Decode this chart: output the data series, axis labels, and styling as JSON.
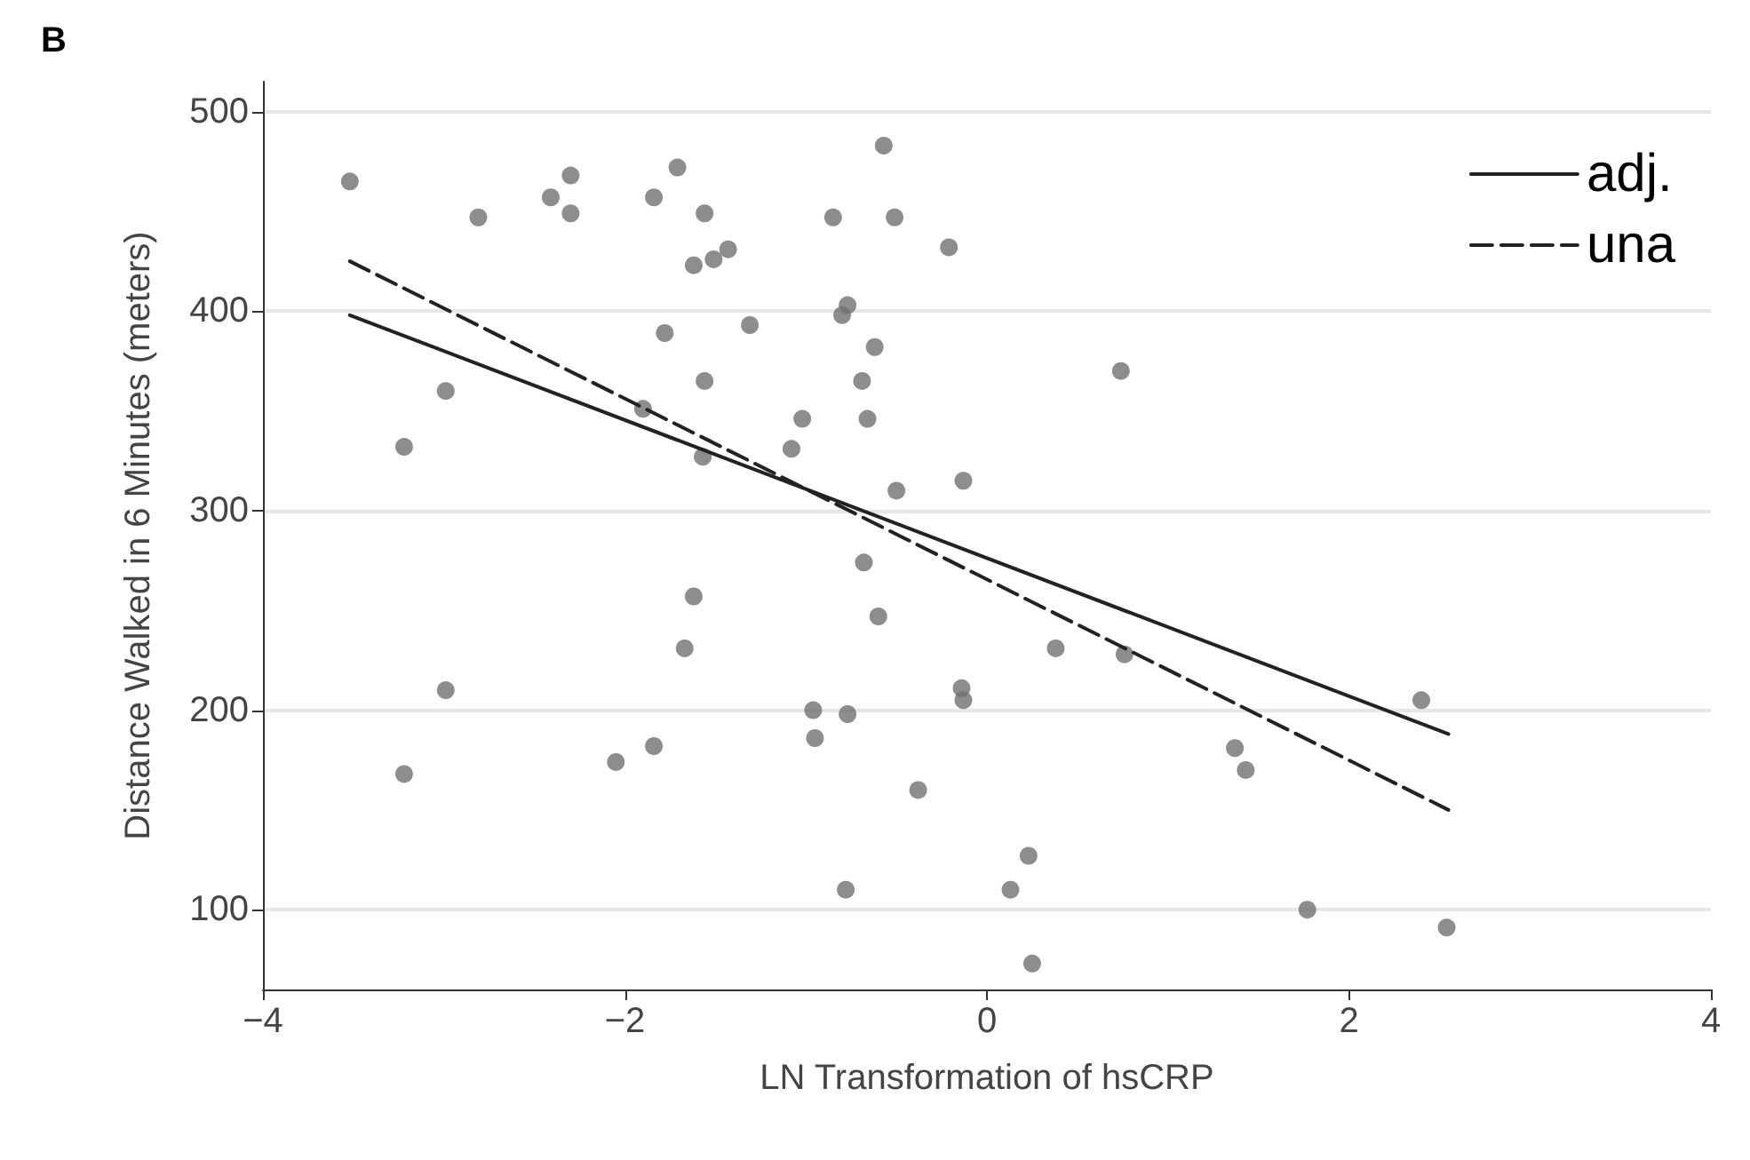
{
  "chart_data": {
    "type": "scatter",
    "title": "B",
    "xlabel": "LN Transformation of hsCRP",
    "ylabel": "Distance Walked in 6 Minutes (meters)",
    "xlim": [
      -4,
      4
    ],
    "xticks": [
      -4,
      -2,
      0,
      2,
      4
    ],
    "ylim": [
      60,
      515
    ],
    "yticks": [
      100,
      200,
      300,
      400,
      500
    ],
    "grid": "y",
    "legend": "top right",
    "marker": "circle",
    "series": [
      {
        "color": "#707070",
        "x": [
          -3.52,
          -2.81,
          -2.41,
          -2.3,
          -2.3,
          -1.84,
          -1.71,
          -1.56,
          -1.62,
          -1.51,
          -1.43,
          -1.78,
          -1.31,
          -1.56,
          -2.99,
          -3.22,
          -1.9,
          -1.57,
          -1.62,
          -1.67,
          -2.99,
          -3.22,
          -2.05,
          -1.84,
          -0.57,
          -0.85,
          -0.51,
          -0.21,
          -0.77,
          -0.8,
          -0.62,
          -0.69,
          -1.02,
          -0.66,
          -1.08,
          0.74,
          -0.5,
          -0.13,
          -0.68,
          -0.6,
          0.38,
          0.76,
          -0.14,
          -0.13,
          -0.96,
          -0.77,
          -0.95,
          2.4,
          1.37,
          1.43,
          -0.38,
          0.23,
          -0.78,
          0.13,
          1.77,
          2.54,
          0.25
        ],
        "values": [
          465,
          447,
          457,
          468,
          449,
          457,
          472,
          449,
          423,
          426,
          431,
          389,
          393,
          365,
          360,
          332,
          351,
          327,
          257,
          231,
          210,
          168,
          174,
          182,
          483,
          447,
          447,
          432,
          403,
          398,
          382,
          365,
          346,
          346,
          331,
          370,
          310,
          315,
          274,
          247,
          231,
          228,
          211,
          205,
          200,
          198,
          186,
          205,
          181,
          170,
          160,
          127,
          110,
          110,
          100,
          91,
          73
        ]
      },
      {
        "type": "line",
        "name": "adj.",
        "color": "#222222",
        "line_style": "solid",
        "marker": "none",
        "x": [
          -3.52,
          2.55
        ],
        "values": [
          398,
          188
        ]
      },
      {
        "type": "line",
        "name": "una",
        "color": "#222222",
        "line_style": "dashed",
        "marker": "none",
        "x": [
          -3.52,
          2.55
        ],
        "values": [
          425,
          150
        ]
      }
    ]
  }
}
